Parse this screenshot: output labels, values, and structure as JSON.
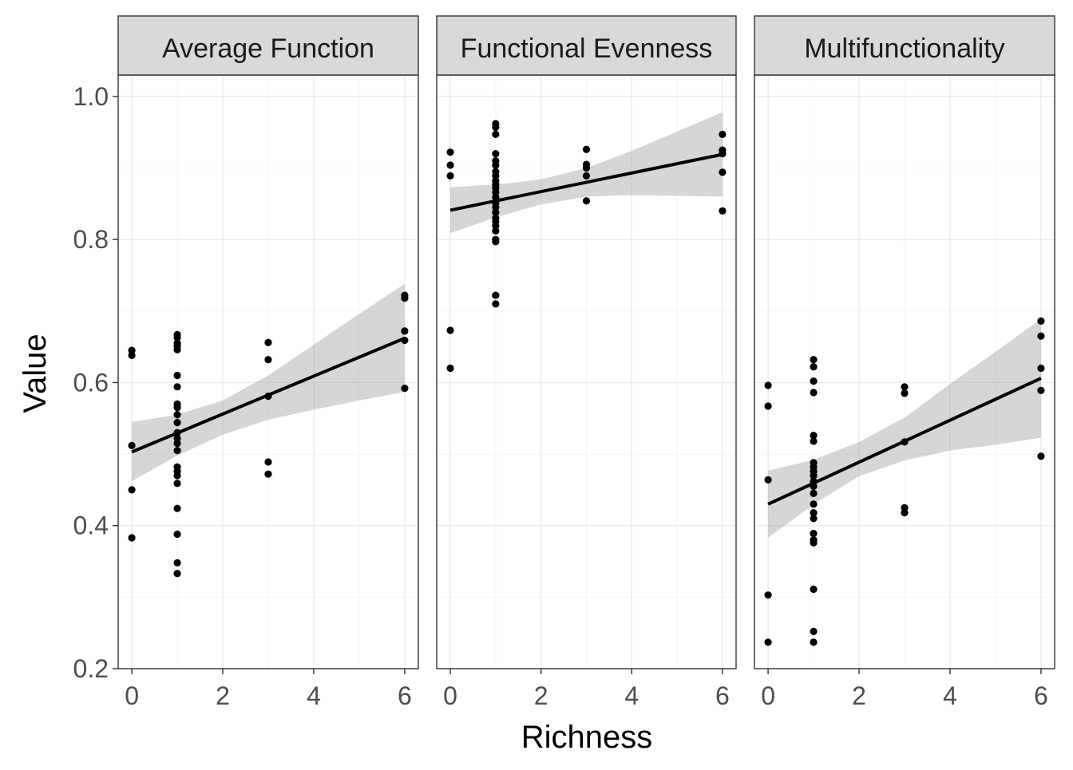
{
  "chart_data": {
    "type": "scatter",
    "xlabel": "Richness",
    "ylabel": "Value",
    "xlim": [
      -0.3,
      6.3
    ],
    "ylim": [
      0.2,
      1.03
    ],
    "x_ticks": [
      0,
      2,
      4,
      6
    ],
    "y_ticks": [
      0.2,
      0.4,
      0.6,
      0.8,
      1.0
    ],
    "y_tick_labels": [
      "0.2",
      "0.4",
      "0.6",
      "0.8",
      "1.0"
    ],
    "x_tick_labels": [
      "0",
      "2",
      "4",
      "6"
    ],
    "grid": true,
    "facets": [
      {
        "name": "Average Function",
        "points": [
          [
            0,
            0.645
          ],
          [
            0,
            0.638
          ],
          [
            0,
            0.512
          ],
          [
            0,
            0.45
          ],
          [
            0,
            0.383
          ],
          [
            1,
            0.667
          ],
          [
            1,
            0.663
          ],
          [
            1,
            0.655
          ],
          [
            1,
            0.651
          ],
          [
            1,
            0.646
          ],
          [
            1,
            0.61
          ],
          [
            1,
            0.594
          ],
          [
            1,
            0.57
          ],
          [
            1,
            0.565
          ],
          [
            1,
            0.555
          ],
          [
            1,
            0.544
          ],
          [
            1,
            0.53
          ],
          [
            1,
            0.522
          ],
          [
            1,
            0.515
          ],
          [
            1,
            0.505
          ],
          [
            1,
            0.482
          ],
          [
            1,
            0.476
          ],
          [
            1,
            0.47
          ],
          [
            1,
            0.459
          ],
          [
            1,
            0.424
          ],
          [
            1,
            0.388
          ],
          [
            1,
            0.348
          ],
          [
            1,
            0.333
          ],
          [
            3,
            0.656
          ],
          [
            3,
            0.632
          ],
          [
            3,
            0.581
          ],
          [
            3,
            0.489
          ],
          [
            3,
            0.472
          ],
          [
            6,
            0.722
          ],
          [
            6,
            0.718
          ],
          [
            6,
            0.672
          ],
          [
            6,
            0.659
          ],
          [
            6,
            0.592
          ]
        ],
        "fit": {
          "x": [
            0,
            6
          ],
          "y": [
            0.503,
            0.662
          ]
        },
        "ci": [
          {
            "x": 0,
            "lo": 0.462,
            "hi": 0.545
          },
          {
            "x": 1,
            "lo": 0.498,
            "hi": 0.555
          },
          {
            "x": 2,
            "lo": 0.527,
            "hi": 0.575
          },
          {
            "x": 3,
            "lo": 0.548,
            "hi": 0.61
          },
          {
            "x": 4,
            "lo": 0.562,
            "hi": 0.653
          },
          {
            "x": 5,
            "lo": 0.575,
            "hi": 0.696
          },
          {
            "x": 6,
            "lo": 0.587,
            "hi": 0.738
          }
        ]
      },
      {
        "name": "Functional Evenness",
        "points": [
          [
            0,
            0.922
          ],
          [
            0,
            0.904
          ],
          [
            0,
            0.889
          ],
          [
            0,
            0.673
          ],
          [
            0,
            0.62
          ],
          [
            1,
            0.962
          ],
          [
            1,
            0.957
          ],
          [
            1,
            0.947
          ],
          [
            1,
            0.92
          ],
          [
            1,
            0.91
          ],
          [
            1,
            0.904
          ],
          [
            1,
            0.895
          ],
          [
            1,
            0.889
          ],
          [
            1,
            0.882
          ],
          [
            1,
            0.877
          ],
          [
            1,
            0.872
          ],
          [
            1,
            0.866
          ],
          [
            1,
            0.859
          ],
          [
            1,
            0.851
          ],
          [
            1,
            0.845
          ],
          [
            1,
            0.838
          ],
          [
            1,
            0.83
          ],
          [
            1,
            0.825
          ],
          [
            1,
            0.819
          ],
          [
            1,
            0.812
          ],
          [
            1,
            0.8
          ],
          [
            1,
            0.797
          ],
          [
            1,
            0.722
          ],
          [
            1,
            0.71
          ],
          [
            3,
            0.926
          ],
          [
            3,
            0.905
          ],
          [
            3,
            0.9
          ],
          [
            3,
            0.889
          ],
          [
            3,
            0.854
          ],
          [
            6,
            0.947
          ],
          [
            6,
            0.925
          ],
          [
            6,
            0.92
          ],
          [
            6,
            0.894
          ],
          [
            6,
            0.84
          ]
        ],
        "fit": {
          "x": [
            0,
            6
          ],
          "y": [
            0.841,
            0.919
          ]
        },
        "ci": [
          {
            "x": 0,
            "lo": 0.809,
            "hi": 0.873
          },
          {
            "x": 1,
            "lo": 0.831,
            "hi": 0.877
          },
          {
            "x": 2,
            "lo": 0.849,
            "hi": 0.884
          },
          {
            "x": 3,
            "lo": 0.86,
            "hi": 0.9
          },
          {
            "x": 4,
            "lo": 0.862,
            "hi": 0.924
          },
          {
            "x": 5,
            "lo": 0.861,
            "hi": 0.951
          },
          {
            "x": 6,
            "lo": 0.86,
            "hi": 0.978
          }
        ]
      },
      {
        "name": "Multifunctionality",
        "points": [
          [
            0,
            0.596
          ],
          [
            0,
            0.567
          ],
          [
            0,
            0.464
          ],
          [
            0,
            0.303
          ],
          [
            0,
            0.237
          ],
          [
            1,
            0.632
          ],
          [
            1,
            0.622
          ],
          [
            1,
            0.602
          ],
          [
            1,
            0.586
          ],
          [
            1,
            0.526
          ],
          [
            1,
            0.518
          ],
          [
            1,
            0.488
          ],
          [
            1,
            0.482
          ],
          [
            1,
            0.476
          ],
          [
            1,
            0.47
          ],
          [
            1,
            0.462
          ],
          [
            1,
            0.455
          ],
          [
            1,
            0.445
          ],
          [
            1,
            0.43
          ],
          [
            1,
            0.418
          ],
          [
            1,
            0.41
          ],
          [
            1,
            0.389
          ],
          [
            1,
            0.38
          ],
          [
            1,
            0.376
          ],
          [
            1,
            0.311
          ],
          [
            1,
            0.252
          ],
          [
            1,
            0.237
          ],
          [
            3,
            0.594
          ],
          [
            3,
            0.585
          ],
          [
            3,
            0.517
          ],
          [
            3,
            0.425
          ],
          [
            3,
            0.418
          ],
          [
            6,
            0.686
          ],
          [
            6,
            0.665
          ],
          [
            6,
            0.62
          ],
          [
            6,
            0.589
          ],
          [
            6,
            0.497
          ]
        ],
        "fit": {
          "x": [
            0,
            6
          ],
          "y": [
            0.43,
            0.606
          ]
        },
        "ci": [
          {
            "x": 0,
            "lo": 0.383,
            "hi": 0.477
          },
          {
            "x": 1,
            "lo": 0.43,
            "hi": 0.492
          },
          {
            "x": 2,
            "lo": 0.469,
            "hi": 0.517
          },
          {
            "x": 3,
            "lo": 0.491,
            "hi": 0.551
          },
          {
            "x": 4,
            "lo": 0.505,
            "hi": 0.598
          },
          {
            "x": 5,
            "lo": 0.513,
            "hi": 0.643
          },
          {
            "x": 6,
            "lo": 0.523,
            "hi": 0.689
          }
        ]
      }
    ]
  }
}
